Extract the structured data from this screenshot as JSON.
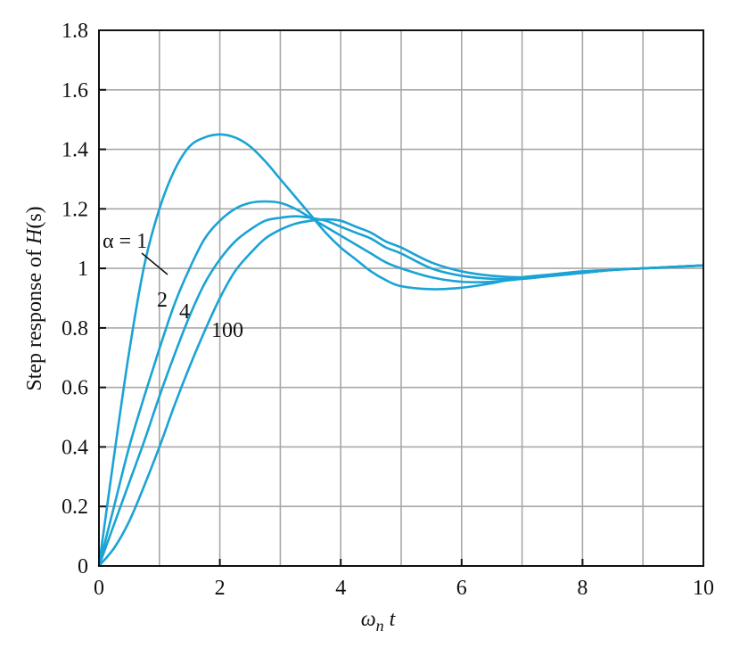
{
  "chart_data": {
    "type": "line",
    "title": "",
    "xlabel_symbol": "ω",
    "xlabel_sub": "n",
    "xlabel_suffix": " t",
    "ylabel_prefix": "Step response of ",
    "ylabel_italic": "H",
    "ylabel_suffix": "(s)",
    "xlim": [
      0,
      10
    ],
    "ylim": [
      0,
      1.8
    ],
    "xticks": [
      0,
      2,
      4,
      6,
      8,
      10
    ],
    "xtick_labels": [
      "0",
      "2",
      "4",
      "6",
      "8",
      "10"
    ],
    "yticks": [
      0,
      0.2,
      0.4,
      0.6,
      0.8,
      1,
      1.2,
      1.4,
      1.6,
      1.8
    ],
    "ytick_labels": [
      "0",
      "0.2",
      "0.4",
      "0.6",
      "0.8",
      "1",
      "1.2",
      "1.4",
      "1.6",
      "1.8"
    ],
    "grid_x_step": 1,
    "grid_y_step": 0.2,
    "grid": true,
    "line_color": "#1aa3d4",
    "grid_color": "#a8a8a8",
    "series": [
      {
        "label": "α = 1",
        "x": [
          0,
          0.25,
          0.5,
          0.75,
          1.0,
          1.25,
          1.5,
          1.75,
          2.0,
          2.25,
          2.5,
          2.75,
          3.0,
          3.25,
          3.5,
          3.75,
          4.0,
          4.25,
          4.5,
          4.75,
          5.0,
          5.5,
          6.0,
          6.5,
          7.0,
          7.5,
          8.0,
          8.5,
          9.0,
          9.5,
          10.0
        ],
        "y": [
          0,
          0.37,
          0.72,
          1.01,
          1.2,
          1.33,
          1.41,
          1.44,
          1.45,
          1.44,
          1.41,
          1.36,
          1.3,
          1.24,
          1.18,
          1.12,
          1.07,
          1.03,
          0.99,
          0.96,
          0.94,
          0.93,
          0.935,
          0.95,
          0.97,
          0.98,
          0.99,
          0.995,
          1.0,
          1.005,
          1.01
        ]
      },
      {
        "label": "2",
        "x": [
          0,
          0.25,
          0.5,
          0.75,
          1.0,
          1.25,
          1.5,
          1.75,
          2.0,
          2.25,
          2.5,
          2.75,
          3.0,
          3.25,
          3.5,
          3.75,
          4.0,
          4.25,
          4.5,
          4.75,
          5.0,
          5.5,
          6.0,
          6.5,
          7.0,
          7.5,
          8.0,
          8.5,
          9.0,
          9.5,
          10.0
        ],
        "y": [
          0,
          0.2,
          0.4,
          0.57,
          0.73,
          0.88,
          1.0,
          1.1,
          1.16,
          1.2,
          1.22,
          1.225,
          1.22,
          1.2,
          1.17,
          1.14,
          1.11,
          1.08,
          1.05,
          1.02,
          1.0,
          0.97,
          0.955,
          0.955,
          0.965,
          0.975,
          0.985,
          0.995,
          1.0,
          1.005,
          1.01
        ]
      },
      {
        "label": "4",
        "x": [
          0,
          0.25,
          0.5,
          0.75,
          1.0,
          1.25,
          1.5,
          1.75,
          2.0,
          2.25,
          2.5,
          2.75,
          3.0,
          3.25,
          3.5,
          3.75,
          4.0,
          4.25,
          4.5,
          4.75,
          5.0,
          5.5,
          6.0,
          6.5,
          7.0,
          7.5,
          8.0,
          8.5,
          9.0,
          9.5,
          10.0
        ],
        "y": [
          0,
          0.14,
          0.28,
          0.42,
          0.57,
          0.71,
          0.84,
          0.95,
          1.03,
          1.09,
          1.13,
          1.16,
          1.17,
          1.175,
          1.17,
          1.16,
          1.14,
          1.12,
          1.1,
          1.07,
          1.05,
          1.0,
          0.975,
          0.965,
          0.965,
          0.975,
          0.985,
          0.995,
          1.0,
          1.005,
          1.01
        ]
      },
      {
        "label": "100",
        "x": [
          0,
          0.25,
          0.5,
          0.75,
          1.0,
          1.25,
          1.5,
          1.75,
          2.0,
          2.25,
          2.5,
          2.75,
          3.0,
          3.25,
          3.5,
          3.75,
          4.0,
          4.25,
          4.5,
          4.75,
          5.0,
          5.5,
          6.0,
          6.5,
          7.0,
          7.5,
          8.0,
          8.5,
          9.0,
          9.5,
          10.0
        ],
        "y": [
          0,
          0.06,
          0.15,
          0.27,
          0.4,
          0.54,
          0.67,
          0.79,
          0.9,
          0.99,
          1.05,
          1.1,
          1.13,
          1.15,
          1.16,
          1.165,
          1.16,
          1.14,
          1.12,
          1.09,
          1.07,
          1.02,
          0.99,
          0.975,
          0.97,
          0.975,
          0.985,
          0.995,
          1.0,
          1.005,
          1.01
        ]
      }
    ]
  }
}
